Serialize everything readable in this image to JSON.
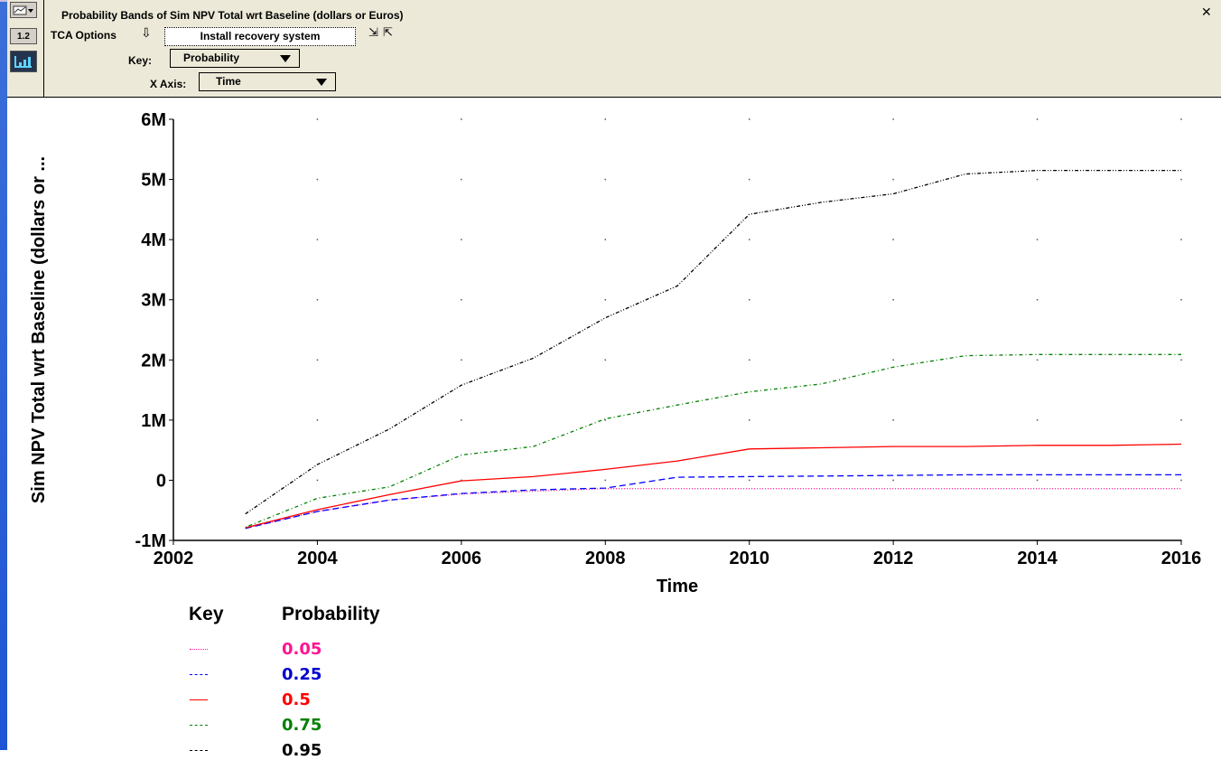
{
  "header": {
    "title": "Probability Bands of Sim NPV Total wrt Baseline (dollars or Euros)",
    "tca_label": "TCA Options",
    "tca_value": "Install recovery system",
    "key_label": "Key:",
    "key_value": "Probability",
    "xaxis_label": "X Axis:",
    "xaxis_value": "Time",
    "icons": {
      "menu": "chart-menu-icon",
      "numeric": "numeric-view-icon",
      "graph": "graph-view-icon",
      "tca_arrow": "down-arrow-icon",
      "copy": "copy-icon",
      "paste": "paste-icon",
      "close": "close-icon"
    },
    "numeric_icon_text": "1.2"
  },
  "chart_data": {
    "type": "line",
    "title": "",
    "xlabel": "Time",
    "ylabel": "Sim NPV Total wrt Baseline (dollars or ...",
    "xlim": [
      2002,
      2016
    ],
    "ylim": [
      -1000000,
      6000000
    ],
    "x_ticks": [
      2002,
      2004,
      2006,
      2008,
      2010,
      2012,
      2014,
      2016
    ],
    "y_ticks": [
      {
        "value": -1000000,
        "label": "-1M"
      },
      {
        "value": 0,
        "label": "0"
      },
      {
        "value": 1000000,
        "label": "1M"
      },
      {
        "value": 2000000,
        "label": "2M"
      },
      {
        "value": 3000000,
        "label": "3M"
      },
      {
        "value": 4000000,
        "label": "4M"
      },
      {
        "value": 5000000,
        "label": "5M"
      },
      {
        "value": 6000000,
        "label": "6M"
      }
    ],
    "grid": "dotted",
    "legend_placement": "bottom-left",
    "legend_title_key": "Key",
    "legend_title_value": "Probability",
    "x": [
      2003,
      2004,
      2005,
      2006,
      2007,
      2008,
      2009,
      2010,
      2011,
      2012,
      2013,
      2014,
      2015,
      2016
    ],
    "series": [
      {
        "name": "0.05",
        "color": "#ff1493",
        "dash": "1,2",
        "values": [
          -800000,
          -520000,
          -330000,
          -230000,
          -180000,
          -140000,
          -140000,
          -140000,
          -140000,
          -140000,
          -140000,
          -140000,
          -140000,
          -140000
        ]
      },
      {
        "name": "0.25",
        "color": "#0000ff",
        "dash": "7,4",
        "values": [
          -800000,
          -520000,
          -330000,
          -220000,
          -160000,
          -130000,
          50000,
          60000,
          70000,
          80000,
          90000,
          90000,
          90000,
          90000
        ]
      },
      {
        "name": "0.5",
        "color": "#ff0000",
        "dash": "",
        "values": [
          -790000,
          -490000,
          -240000,
          -10000,
          60000,
          180000,
          320000,
          520000,
          540000,
          560000,
          560000,
          580000,
          580000,
          600000
        ]
      },
      {
        "name": "0.75",
        "color": "#008000",
        "dash": "1,3,4,3",
        "values": [
          -780000,
          -300000,
          -110000,
          420000,
          560000,
          1020000,
          1250000,
          1470000,
          1600000,
          1880000,
          2070000,
          2090000,
          2090000,
          2090000
        ]
      },
      {
        "name": "0.95",
        "color": "#000000",
        "dash": "4,2,1,2,1,2",
        "values": [
          -560000,
          260000,
          850000,
          1580000,
          2030000,
          2700000,
          3230000,
          4420000,
          4620000,
          4760000,
          5090000,
          5150000,
          5150000,
          5150000
        ]
      }
    ]
  }
}
